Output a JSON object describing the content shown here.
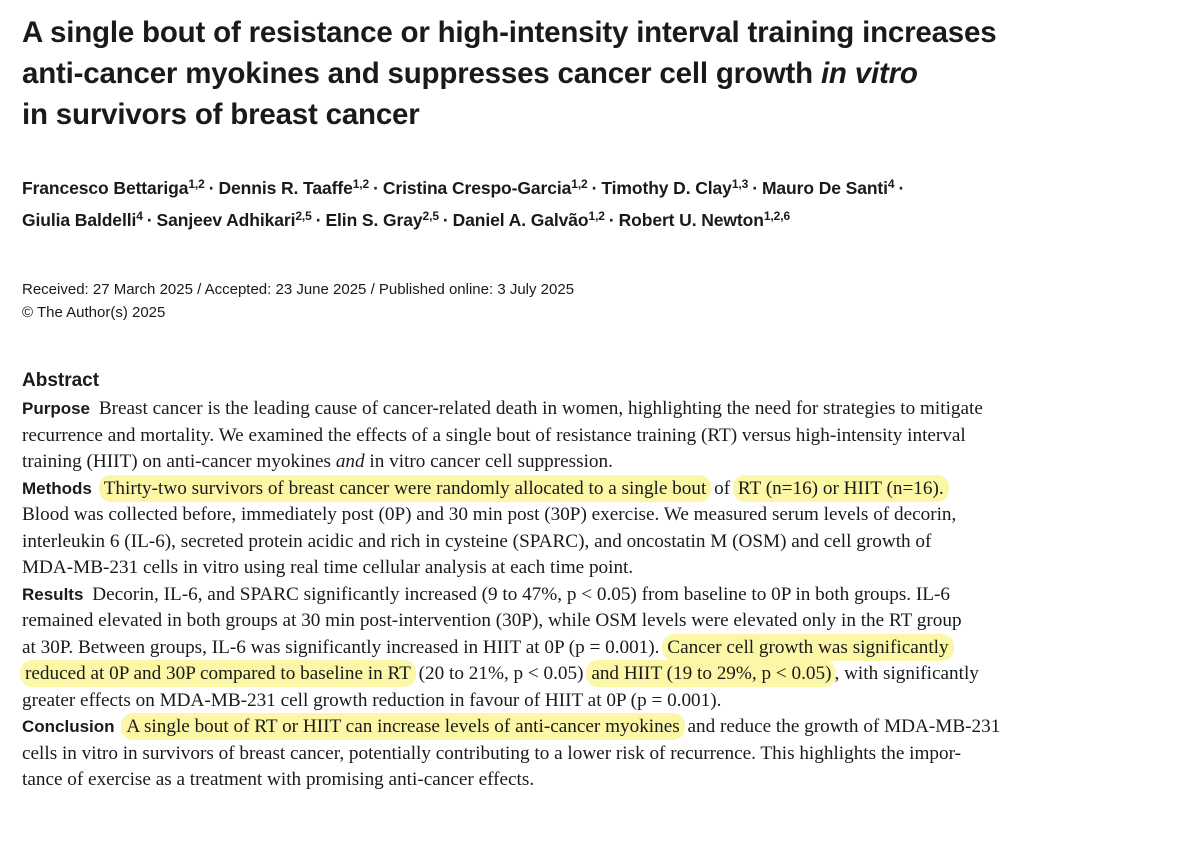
{
  "title": {
    "line1": "A single bout of resistance or high-intensity interval training increases",
    "line2_a": "anti-cancer myokines and suppresses cancer cell growth ",
    "line2_italic": "in vitro",
    "line3": "in survivors of breast cancer"
  },
  "authors": [
    {
      "name": "Francesco Bettariga",
      "aff": "1,2"
    },
    {
      "name": "Dennis R. Taaffe",
      "aff": "1,2"
    },
    {
      "name": "Cristina Crespo-Garcia",
      "aff": "1,2"
    },
    {
      "name": "Timothy D. Clay",
      "aff": "1,3"
    },
    {
      "name": "Mauro De Santi",
      "aff": "4"
    },
    {
      "name": "Giulia Baldelli",
      "aff": "4"
    },
    {
      "name": "Sanjeev Adhikari",
      "aff": "2,5"
    },
    {
      "name": "Elin S. Gray",
      "aff": "2,5"
    },
    {
      "name": "Daniel A. Galvão",
      "aff": "1,2"
    },
    {
      "name": "Robert U. Newton",
      "aff": "1,2,6"
    }
  ],
  "author_separator": "·",
  "dates": {
    "line": "Received: 27 March 2025 / Accepted: 23 June 2025 / Published online: 3 July 2025",
    "copyright": "© The Author(s) 2025"
  },
  "abstract": {
    "heading": "Abstract",
    "purpose": {
      "label": "Purpose",
      "l1": "Breast cancer is the leading cause of cancer-related death in women, highlighting the need for strategies to mitigate",
      "l2": "recurrence and mortality. We examined the effects of a single bout of resistance training (RT) versus high-intensity interval",
      "l3_a": "training (HIIT) on anti-cancer myokines ",
      "l3_italic": "and",
      "l3_b": " in vitro cancer cell suppression."
    },
    "methods": {
      "label": "Methods",
      "hl1": "Thirty-two survivors of breast cancer were randomly allocated to a single bout",
      "mid": " of ",
      "hl2": "RT (n=16) or HIIT (n=16).",
      "l2": "Blood was collected before, immediately post (0P) and 30 min post (30P) exercise. We measured serum levels of decorin,",
      "l3": "interleukin 6 (IL-6), secreted protein acidic and rich in cysteine (SPARC), and oncostatin M (OSM) and cell growth of",
      "l4": "MDA-MB-231 cells in vitro using real time cellular analysis at each time point."
    },
    "results": {
      "label": "Results",
      "l1": "Decorin, IL-6, and SPARC significantly increased (9 to 47%, p < 0.05) from baseline to 0P in both groups. IL-6",
      "l2": "remained elevated in both groups at 30 min post-intervention (30P), while OSM levels were elevated only in the RT group",
      "l3_a": "at 30P. Between groups, IL-6 was significantly increased in HIIT at 0P (p = 0.001). ",
      "l3_hl": "Cancer cell growth was significantly",
      "l4_hl1": "reduced at 0P and 30P compared to baseline in RT",
      "l4_mid": " (20 to 21%, p < 0.05) ",
      "l4_hl2": "and HIIT (19 to 29%, p < 0.05)",
      "l4_b": ", with significantly",
      "l5": "greater effects on MDA-MB-231 cell growth reduction in favour of HIIT at 0P (p = 0.001)."
    },
    "conclusion": {
      "label": "Conclusion",
      "hl": "A single bout of RT or HIIT can increase levels of anti-cancer myokines",
      "l1_b": " and reduce the growth of MDA-MB-231",
      "l2": "cells in vitro in survivors of breast cancer, potentially contributing to a lower risk of recurrence. This highlights the impor-",
      "l3": "tance of exercise as a treatment with promising anti-cancer effects."
    }
  },
  "colors": {
    "highlight": "#fbf7a6",
    "text": "#1a1a1a"
  }
}
